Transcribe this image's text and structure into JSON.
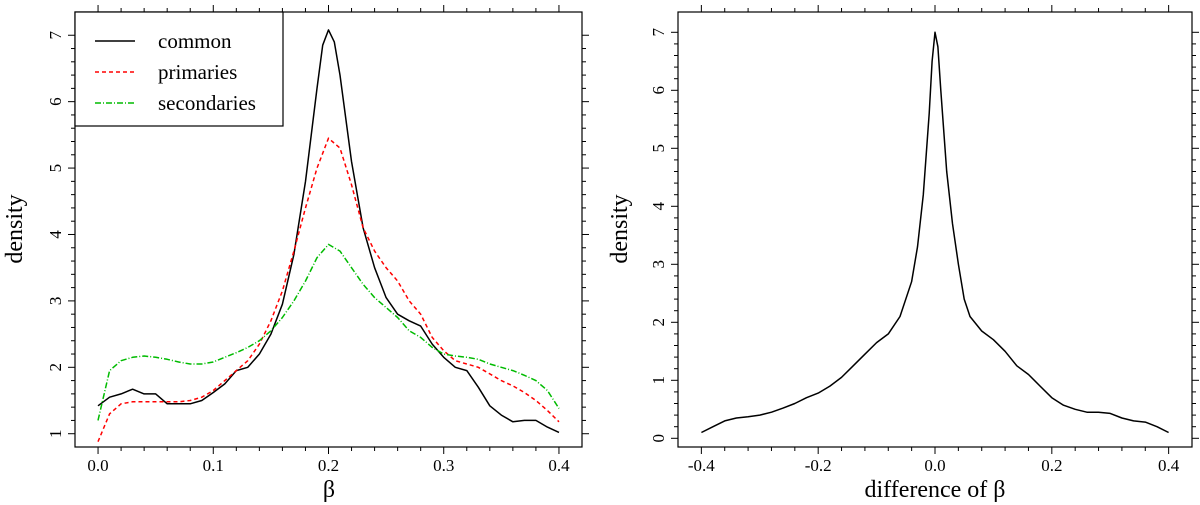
{
  "chart_data": [
    {
      "type": "line",
      "xlabel": "β",
      "ylabel": "density",
      "xlim": [
        -0.02,
        0.42
      ],
      "ylim": [
        0.8,
        7.35
      ],
      "xticks": [
        "0.0",
        "0.1",
        "0.2",
        "0.3",
        "0.4"
      ],
      "xtick_values": [
        0.0,
        0.1,
        0.2,
        0.3,
        0.4
      ],
      "yticks": [
        "1",
        "2",
        "3",
        "4",
        "5",
        "6",
        "7"
      ],
      "ytick_values": [
        1,
        2,
        3,
        4,
        5,
        6,
        7
      ],
      "legend": {
        "position": "top-left",
        "entries": [
          "common",
          "primaries",
          "secondaries"
        ]
      },
      "series": [
        {
          "name": "common",
          "color": "#000000",
          "dash": "solid",
          "points": [
            [
              0.0,
              1.42
            ],
            [
              0.01,
              1.55
            ],
            [
              0.02,
              1.6
            ],
            [
              0.03,
              1.67
            ],
            [
              0.04,
              1.6
            ],
            [
              0.05,
              1.6
            ],
            [
              0.06,
              1.45
            ],
            [
              0.07,
              1.45
            ],
            [
              0.08,
              1.45
            ],
            [
              0.09,
              1.5
            ],
            [
              0.1,
              1.62
            ],
            [
              0.11,
              1.75
            ],
            [
              0.12,
              1.95
            ],
            [
              0.13,
              2.0
            ],
            [
              0.14,
              2.2
            ],
            [
              0.15,
              2.5
            ],
            [
              0.16,
              2.95
            ],
            [
              0.17,
              3.7
            ],
            [
              0.18,
              4.8
            ],
            [
              0.19,
              6.2
            ],
            [
              0.195,
              6.85
            ],
            [
              0.2,
              7.08
            ],
            [
              0.205,
              6.9
            ],
            [
              0.21,
              6.4
            ],
            [
              0.22,
              5.1
            ],
            [
              0.23,
              4.1
            ],
            [
              0.24,
              3.5
            ],
            [
              0.25,
              3.05
            ],
            [
              0.26,
              2.8
            ],
            [
              0.27,
              2.7
            ],
            [
              0.28,
              2.62
            ],
            [
              0.29,
              2.35
            ],
            [
              0.3,
              2.15
            ],
            [
              0.31,
              2.0
            ],
            [
              0.32,
              1.95
            ],
            [
              0.33,
              1.7
            ],
            [
              0.34,
              1.42
            ],
            [
              0.35,
              1.28
            ],
            [
              0.36,
              1.18
            ],
            [
              0.37,
              1.2
            ],
            [
              0.38,
              1.2
            ],
            [
              0.39,
              1.1
            ],
            [
              0.4,
              1.02
            ]
          ]
        },
        {
          "name": "primaries",
          "color": "#ff0000",
          "dash": "dashed",
          "points": [
            [
              0.0,
              0.88
            ],
            [
              0.01,
              1.3
            ],
            [
              0.02,
              1.45
            ],
            [
              0.03,
              1.48
            ],
            [
              0.04,
              1.48
            ],
            [
              0.05,
              1.48
            ],
            [
              0.06,
              1.48
            ],
            [
              0.07,
              1.48
            ],
            [
              0.08,
              1.5
            ],
            [
              0.09,
              1.55
            ],
            [
              0.1,
              1.65
            ],
            [
              0.11,
              1.8
            ],
            [
              0.12,
              1.95
            ],
            [
              0.13,
              2.1
            ],
            [
              0.14,
              2.35
            ],
            [
              0.15,
              2.7
            ],
            [
              0.16,
              3.15
            ],
            [
              0.17,
              3.75
            ],
            [
              0.18,
              4.4
            ],
            [
              0.19,
              5.0
            ],
            [
              0.2,
              5.45
            ],
            [
              0.21,
              5.3
            ],
            [
              0.22,
              4.75
            ],
            [
              0.23,
              4.1
            ],
            [
              0.24,
              3.75
            ],
            [
              0.25,
              3.5
            ],
            [
              0.26,
              3.3
            ],
            [
              0.27,
              3.0
            ],
            [
              0.28,
              2.8
            ],
            [
              0.29,
              2.45
            ],
            [
              0.3,
              2.25
            ],
            [
              0.31,
              2.1
            ],
            [
              0.32,
              2.05
            ],
            [
              0.33,
              2.0
            ],
            [
              0.34,
              1.9
            ],
            [
              0.35,
              1.8
            ],
            [
              0.36,
              1.72
            ],
            [
              0.37,
              1.62
            ],
            [
              0.38,
              1.5
            ],
            [
              0.39,
              1.35
            ],
            [
              0.4,
              1.18
            ]
          ]
        },
        {
          "name": "secondaries",
          "color": "#00bb00",
          "dash": "dashdot",
          "points": [
            [
              0.0,
              1.2
            ],
            [
              0.01,
              1.95
            ],
            [
              0.02,
              2.1
            ],
            [
              0.03,
              2.15
            ],
            [
              0.04,
              2.17
            ],
            [
              0.05,
              2.15
            ],
            [
              0.06,
              2.12
            ],
            [
              0.07,
              2.08
            ],
            [
              0.08,
              2.05
            ],
            [
              0.09,
              2.05
            ],
            [
              0.1,
              2.08
            ],
            [
              0.11,
              2.15
            ],
            [
              0.12,
              2.22
            ],
            [
              0.13,
              2.3
            ],
            [
              0.14,
              2.4
            ],
            [
              0.15,
              2.55
            ],
            [
              0.16,
              2.75
            ],
            [
              0.17,
              3.0
            ],
            [
              0.18,
              3.3
            ],
            [
              0.19,
              3.65
            ],
            [
              0.2,
              3.85
            ],
            [
              0.21,
              3.75
            ],
            [
              0.22,
              3.5
            ],
            [
              0.23,
              3.25
            ],
            [
              0.24,
              3.05
            ],
            [
              0.25,
              2.9
            ],
            [
              0.26,
              2.75
            ],
            [
              0.27,
              2.55
            ],
            [
              0.28,
              2.45
            ],
            [
              0.29,
              2.3
            ],
            [
              0.3,
              2.2
            ],
            [
              0.31,
              2.17
            ],
            [
              0.32,
              2.15
            ],
            [
              0.33,
              2.12
            ],
            [
              0.34,
              2.05
            ],
            [
              0.35,
              2.0
            ],
            [
              0.36,
              1.95
            ],
            [
              0.37,
              1.88
            ],
            [
              0.38,
              1.8
            ],
            [
              0.39,
              1.65
            ],
            [
              0.4,
              1.38
            ]
          ]
        }
      ]
    },
    {
      "type": "line",
      "xlabel": "difference of  β",
      "ylabel": "density",
      "xlim": [
        -0.44,
        0.44
      ],
      "ylim": [
        -0.15,
        7.35
      ],
      "xticks": [
        "-0.4",
        "-0.2",
        "0.0",
        "0.2",
        "0.4"
      ],
      "xtick_values": [
        -0.4,
        -0.2,
        0.0,
        0.2,
        0.4
      ],
      "yticks": [
        "0",
        "1",
        "2",
        "3",
        "4",
        "5",
        "6",
        "7"
      ],
      "ytick_values": [
        0,
        1,
        2,
        3,
        4,
        5,
        6,
        7
      ],
      "series": [
        {
          "color": "#000000",
          "dash": "solid",
          "points": [
            [
              -0.4,
              0.1
            ],
            [
              -0.38,
              0.2
            ],
            [
              -0.36,
              0.3
            ],
            [
              -0.34,
              0.35
            ],
            [
              -0.32,
              0.37
            ],
            [
              -0.3,
              0.4
            ],
            [
              -0.28,
              0.45
            ],
            [
              -0.26,
              0.52
            ],
            [
              -0.24,
              0.6
            ],
            [
              -0.22,
              0.7
            ],
            [
              -0.2,
              0.78
            ],
            [
              -0.18,
              0.9
            ],
            [
              -0.16,
              1.05
            ],
            [
              -0.14,
              1.25
            ],
            [
              -0.12,
              1.45
            ],
            [
              -0.1,
              1.65
            ],
            [
              -0.08,
              1.8
            ],
            [
              -0.06,
              2.1
            ],
            [
              -0.04,
              2.7
            ],
            [
              -0.03,
              3.3
            ],
            [
              -0.02,
              4.2
            ],
            [
              -0.01,
              5.6
            ],
            [
              -0.005,
              6.5
            ],
            [
              0.0,
              7.0
            ],
            [
              0.005,
              6.75
            ],
            [
              0.01,
              6.0
            ],
            [
              0.02,
              4.6
            ],
            [
              0.03,
              3.7
            ],
            [
              0.04,
              3.0
            ],
            [
              0.05,
              2.4
            ],
            [
              0.06,
              2.1
            ],
            [
              0.08,
              1.85
            ],
            [
              0.1,
              1.7
            ],
            [
              0.12,
              1.5
            ],
            [
              0.14,
              1.25
            ],
            [
              0.16,
              1.1
            ],
            [
              0.18,
              0.9
            ],
            [
              0.2,
              0.7
            ],
            [
              0.22,
              0.57
            ],
            [
              0.24,
              0.5
            ],
            [
              0.26,
              0.45
            ],
            [
              0.28,
              0.45
            ],
            [
              0.3,
              0.43
            ],
            [
              0.32,
              0.35
            ],
            [
              0.34,
              0.3
            ],
            [
              0.36,
              0.28
            ],
            [
              0.38,
              0.2
            ],
            [
              0.4,
              0.1
            ]
          ]
        }
      ]
    }
  ]
}
